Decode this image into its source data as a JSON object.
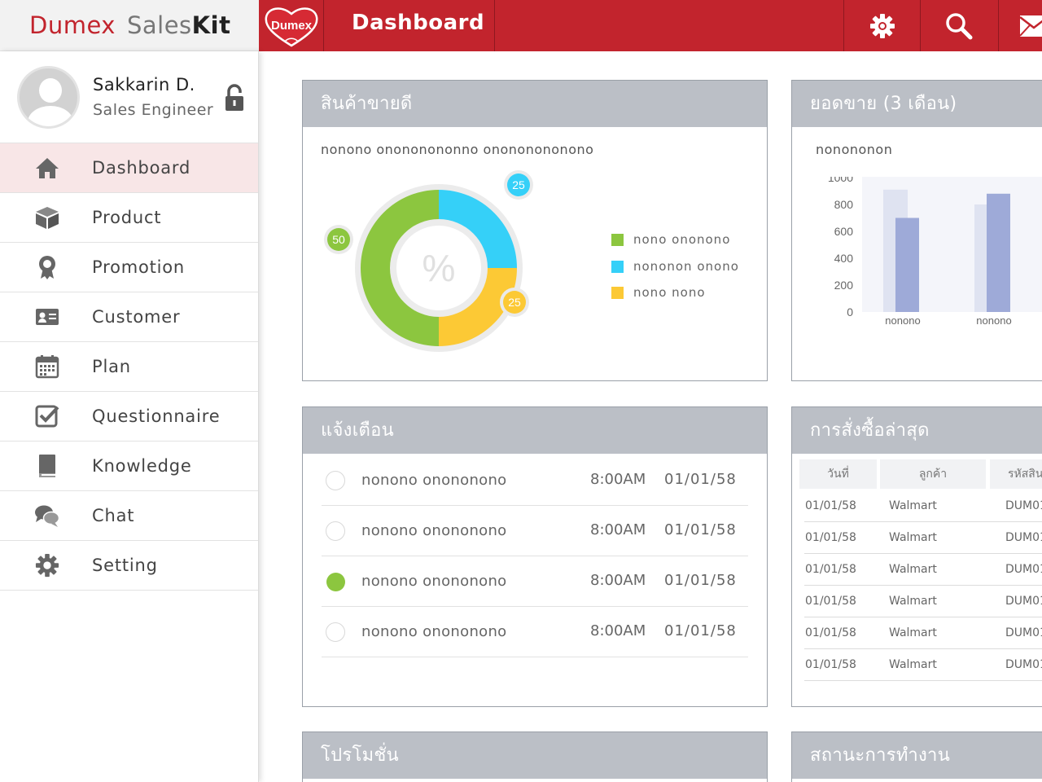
{
  "brand": {
    "part1": "Dumex",
    "part2": "Sales",
    "part3": "Kit"
  },
  "header": {
    "logo_text": "Dumex",
    "title": "Dashboard",
    "buttons": [
      "gear-icon",
      "search-icon",
      "mail-icon"
    ]
  },
  "profile": {
    "name": "Sakkarin D.",
    "role": "Sales Engineer"
  },
  "sidebar": {
    "items": [
      {
        "label": "Dashboard",
        "icon": "home-icon",
        "active": true
      },
      {
        "label": "Product",
        "icon": "box-icon"
      },
      {
        "label": "Promotion",
        "icon": "award-icon"
      },
      {
        "label": "Customer",
        "icon": "contact-card-icon"
      },
      {
        "label": "Plan",
        "icon": "calendar-icon"
      },
      {
        "label": "Questionnaire",
        "icon": "checkbox-icon"
      },
      {
        "label": "Knowledge",
        "icon": "book-icon"
      },
      {
        "label": "Chat",
        "icon": "chat-icon"
      },
      {
        "label": "Setting",
        "icon": "gear-icon"
      }
    ]
  },
  "best_sellers": {
    "title": "สินค้าขายดี",
    "subtitle": "nonono onononononno onononononono",
    "center_label": "%",
    "legend": [
      "nono ononono",
      "nononon onono",
      "nono nono"
    ]
  },
  "sales": {
    "title": "ยอดขาย (3 เดือน)",
    "subtitle": "nonononon"
  },
  "alerts": {
    "title": "แจ้งเตือน",
    "rows": [
      {
        "text": "nonono onononono",
        "time": "8:00AM",
        "date": "01/01/58",
        "checked": false
      },
      {
        "text": "nonono onononono",
        "time": "8:00AM",
        "date": "01/01/58",
        "checked": false
      },
      {
        "text": "nonono onononono",
        "time": "8:00AM",
        "date": "01/01/58",
        "checked": true
      },
      {
        "text": "nonono onononono",
        "time": "8:00AM",
        "date": "01/01/58",
        "checked": false
      }
    ]
  },
  "orders": {
    "title": "การสั่งซื้อล่าสุด",
    "headers": [
      "วันที่",
      "ลูกค้า",
      "รหัสสิน"
    ],
    "rows": [
      {
        "date": "01/01/58",
        "customer": "Walmart",
        "code": "DUM01"
      },
      {
        "date": "01/01/58",
        "customer": "Walmart",
        "code": "DUM01"
      },
      {
        "date": "01/01/58",
        "customer": "Walmart",
        "code": "DUM01"
      },
      {
        "date": "01/01/58",
        "customer": "Walmart",
        "code": "DUM01"
      },
      {
        "date": "01/01/58",
        "customer": "Walmart",
        "code": "DUM01"
      },
      {
        "date": "01/01/58",
        "customer": "Walmart",
        "code": "DUM01"
      }
    ]
  },
  "promotions": {
    "title": "โปรโมชั่น"
  },
  "work_status": {
    "title": "สถานะการทำงาน"
  },
  "colors": {
    "brand_red": "#c2242d",
    "green": "#8cc63f",
    "cyan": "#35d0f8",
    "yellow": "#fcc935",
    "bar_dark": "#9eaad8",
    "bar_light": "#dfe3f1"
  },
  "chart_data": [
    {
      "type": "pie",
      "categories": [
        "nono ononono",
        "nononon onono",
        "nono nono"
      ],
      "values": [
        50,
        25,
        25
      ],
      "data_labels": [
        "50",
        "25",
        "25"
      ],
      "title": "",
      "legend": "right"
    },
    {
      "type": "bar",
      "categories": [
        "nonono",
        "nonono"
      ],
      "series": [
        {
          "values": [
            910,
            800
          ]
        },
        {
          "values": [
            700,
            880
          ]
        }
      ],
      "yticks": [
        "0",
        "200",
        "400",
        "600",
        "800",
        "1000"
      ],
      "ylim": [
        0,
        1000
      ],
      "grid": false
    }
  ]
}
